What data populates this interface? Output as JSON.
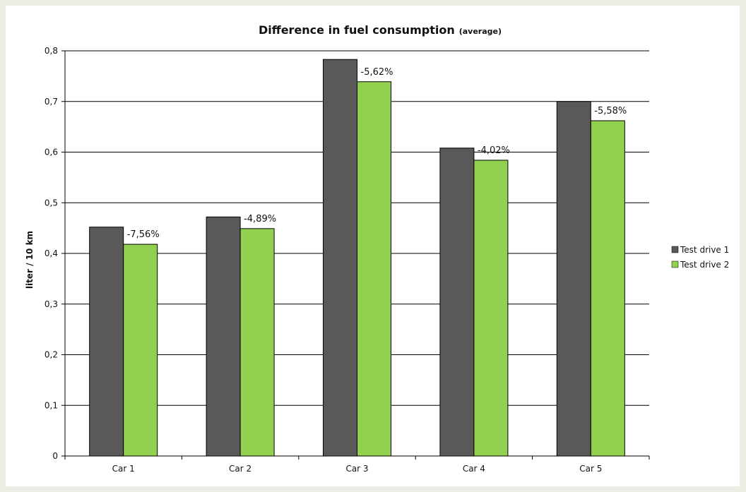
{
  "chart_data": {
    "type": "bar",
    "title": "Difference in fuel consumption",
    "subtitle": "(average)",
    "xlabel": "",
    "ylabel": "liter / 10 km",
    "ylim": [
      0,
      0.8
    ],
    "yticks": [
      "0",
      "0,1",
      "0,2",
      "0,3",
      "0,4",
      "0,5",
      "0,6",
      "0,7",
      "0,8"
    ],
    "grid": true,
    "legend_position": "right",
    "categories": [
      "Car 1",
      "Car 2",
      "Car 3",
      "Car 4",
      "Car 5"
    ],
    "series": [
      {
        "name": "Test drive 1",
        "color": "#595959",
        "values": [
          0.452,
          0.472,
          0.783,
          0.608,
          0.7
        ]
      },
      {
        "name": "Test drive 2",
        "color": "#92d050",
        "values": [
          0.418,
          0.449,
          0.739,
          0.584,
          0.662
        ]
      }
    ],
    "data_labels": [
      "-7,56%",
      "-4,89%",
      "-5,62%",
      "-4,02%",
      "-5,58%"
    ]
  }
}
